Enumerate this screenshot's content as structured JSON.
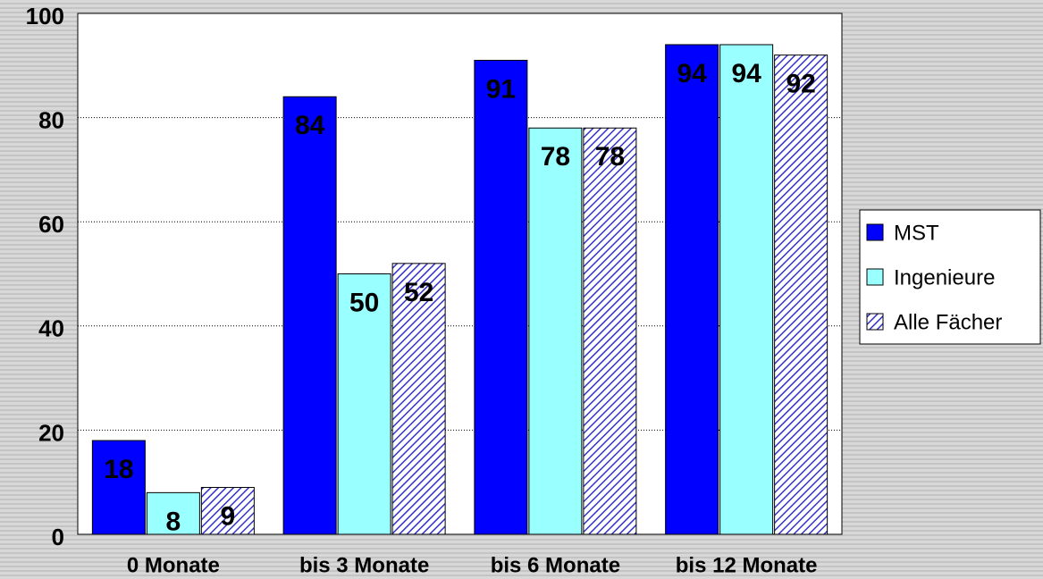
{
  "chart_data": {
    "type": "bar",
    "categories": [
      "0 Monate",
      "bis 3 Monate",
      "bis 6 Monate",
      "bis 12 Monate"
    ],
    "series": [
      {
        "name": "MST",
        "color": "#0000ff",
        "values": [
          18,
          84,
          91,
          94
        ]
      },
      {
        "name": "Ingenieure",
        "color": "#99ffff",
        "values": [
          8,
          50,
          78,
          94
        ]
      },
      {
        "name": "Alle Fächer",
        "color": "#3333cc",
        "pattern": "hatch",
        "values": [
          9,
          52,
          78,
          92
        ]
      }
    ],
    "ylim": [
      0,
      100
    ],
    "yticks": [
      0,
      20,
      40,
      60,
      80,
      100
    ],
    "grid": true,
    "legend": "right"
  }
}
